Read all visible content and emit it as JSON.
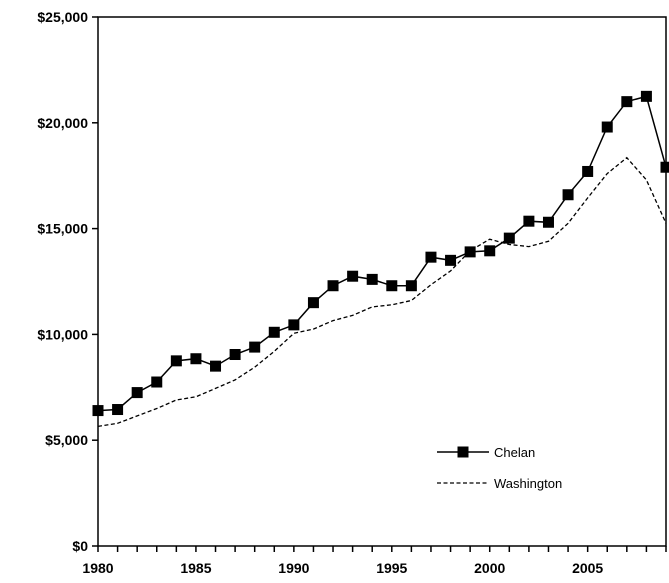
{
  "chart_data": {
    "type": "line",
    "title": "",
    "xlabel": "",
    "ylabel": "",
    "xlim": [
      1980,
      2009
    ],
    "ylim": [
      0,
      25000
    ],
    "grid": false,
    "legend_position": "lower-right",
    "x_ticks": [
      1980,
      1985,
      1990,
      1995,
      2000,
      2005
    ],
    "x_tick_labels": [
      "1980",
      "1985",
      "1990",
      "1995",
      "2000",
      "2005"
    ],
    "y_ticks": [
      0,
      5000,
      10000,
      15000,
      20000,
      25000
    ],
    "y_tick_labels": [
      "$0",
      "$5,000",
      "$10,000",
      "$15,000",
      "$20,000",
      "$25,000"
    ],
    "x": [
      1980,
      1981,
      1982,
      1983,
      1984,
      1985,
      1986,
      1987,
      1988,
      1989,
      1990,
      1991,
      1992,
      1993,
      1994,
      1995,
      1996,
      1997,
      1998,
      1999,
      2000,
      2001,
      2002,
      2003,
      2004,
      2005,
      2006,
      2007,
      2008,
      2009
    ],
    "series": [
      {
        "name": "Chelan",
        "style": "solid-square-markers",
        "color": "#000000",
        "values": [
          6400,
          6450,
          7250,
          7750,
          8750,
          8850,
          8500,
          9050,
          9400,
          10100,
          10450,
          11500,
          12300,
          12750,
          12600,
          12300,
          12300,
          13650,
          13500,
          13900,
          13950,
          14550,
          15350,
          15300,
          16600,
          17700,
          19800,
          21000,
          21250,
          17900
        ]
      },
      {
        "name": "Washington",
        "style": "dashed",
        "color": "#000000",
        "values": [
          5650,
          5800,
          6150,
          6500,
          6900,
          7050,
          7450,
          7850,
          8450,
          9200,
          10050,
          10250,
          10650,
          10900,
          11300,
          11400,
          11600,
          12350,
          13000,
          13950,
          14500,
          14250,
          14150,
          14400,
          15250,
          16450,
          17600,
          18350,
          17300,
          15250
        ]
      }
    ]
  }
}
